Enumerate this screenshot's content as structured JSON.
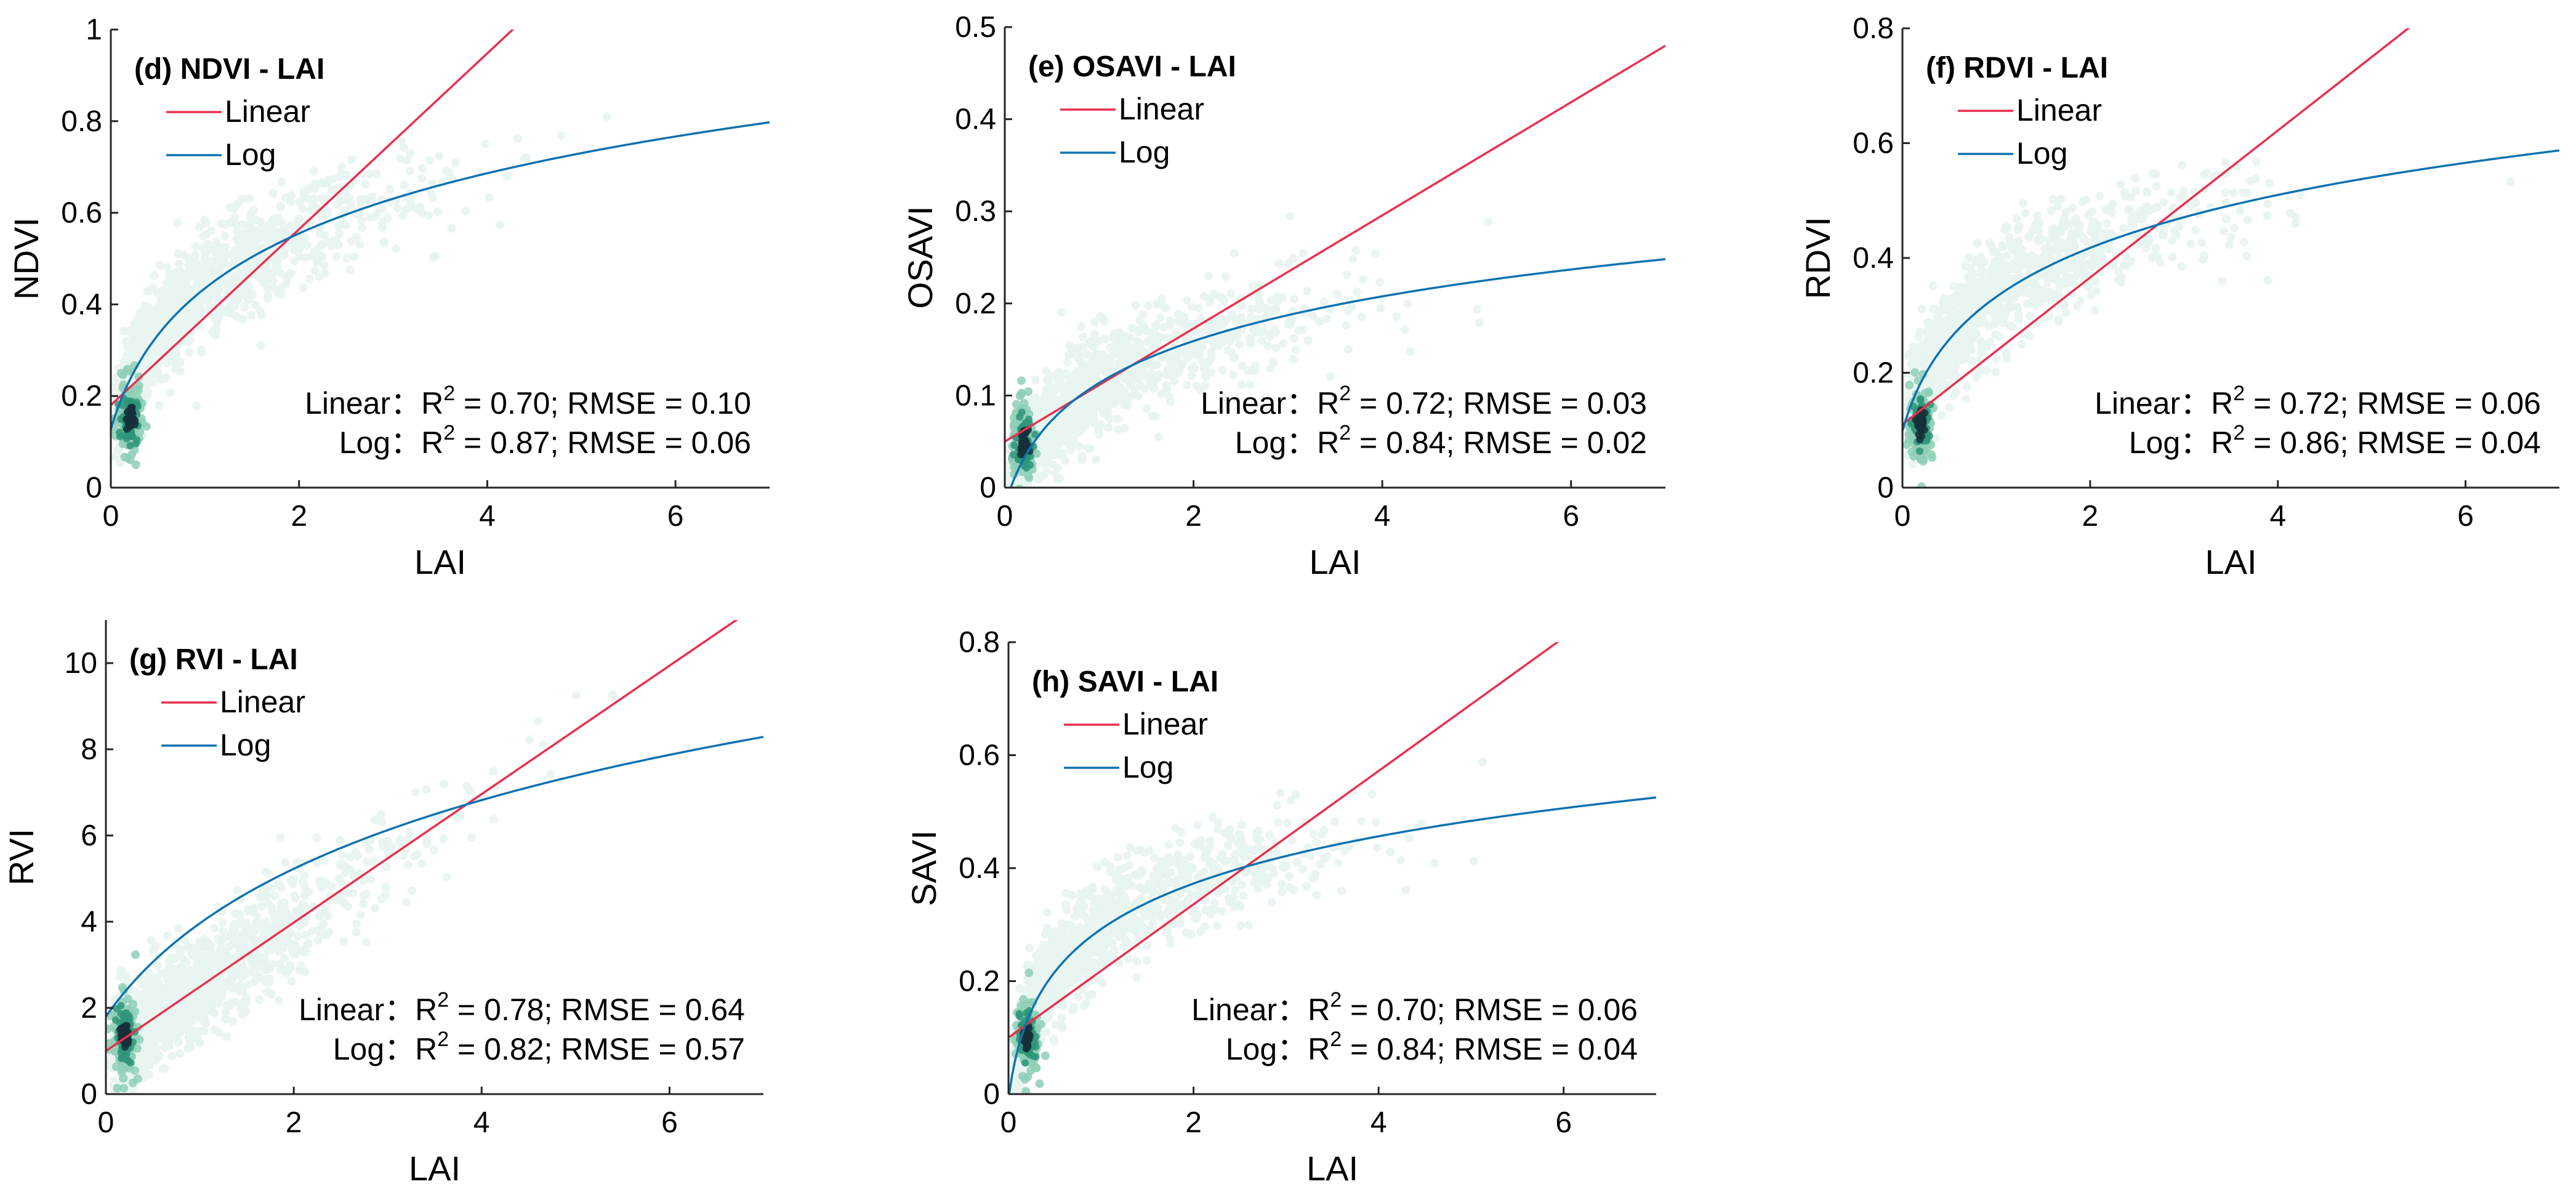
{
  "chart_data": [
    {
      "type": "scatter",
      "title": "(d) NDVI - LAI",
      "xlabel": "LAI",
      "ylabel": "NDVI",
      "xlim": [
        0,
        7
      ],
      "ylim": [
        0,
        1
      ],
      "xticks": [
        0,
        2,
        4,
        6
      ],
      "xtick_labels": [
        "0",
        "2",
        "4",
        "6"
      ],
      "yticks": [
        0,
        0.2,
        0.4,
        0.6,
        0.8,
        1
      ],
      "ytick_labels": [
        "0",
        "0.2",
        "0.4",
        "0.6",
        "0.8",
        "1"
      ],
      "legend": [
        "Linear",
        "Log"
      ],
      "fits": {
        "linear": {
          "intercept": 0.18,
          "slope": 0.192
        },
        "log": {
          "a": 0.38,
          "b": 0.21,
          "c": 0.3
        }
      },
      "stats": {
        "linear": {
          "label": "Linear：",
          "r2": "0.70",
          "rmse": "0.10"
        },
        "log": {
          "label": "Log：",
          "r2": "0.87",
          "rmse": "0.06"
        }
      },
      "density": {
        "center": [
          0.2,
          0.15
        ],
        "spread": [
          0.7,
          0.16
        ],
        "trend": "log"
      }
    },
    {
      "type": "scatter",
      "title": "(e) OSAVI - LAI",
      "xlabel": "LAI",
      "ylabel": "OSAVI",
      "xlim": [
        0,
        7
      ],
      "ylim": [
        0,
        0.5
      ],
      "xticks": [
        0,
        2,
        4,
        6
      ],
      "xtick_labels": [
        "0",
        "2",
        "4",
        "6"
      ],
      "yticks": [
        0,
        0.1,
        0.2,
        0.3,
        0.4,
        0.5
      ],
      "ytick_labels": [
        "0",
        "0.1",
        "0.2",
        "0.3",
        "0.4",
        "0.5"
      ],
      "legend": [
        "Linear",
        "Log"
      ],
      "fits": {
        "linear": {
          "intercept": 0.05,
          "slope": 0.0614
        },
        "log": {
          "a": 0.1,
          "b": 0.075,
          "c": 0.2
        }
      },
      "stats": {
        "linear": {
          "label": "Linear：",
          "r2": "0.72",
          "rmse": "0.03"
        },
        "log": {
          "label": "Log：",
          "r2": "0.84",
          "rmse": "0.02"
        }
      },
      "density": {
        "center": [
          0.2,
          0.05
        ],
        "spread": [
          0.7,
          0.05
        ],
        "trend": "log"
      }
    },
    {
      "type": "scatter",
      "title": "(f) RDVI - LAI",
      "xlabel": "LAI",
      "ylabel": "RDVI",
      "xlim": [
        0,
        7
      ],
      "ylim": [
        0,
        0.8
      ],
      "xticks": [
        0,
        2,
        4,
        6
      ],
      "xtick_labels": [
        "0",
        "2",
        "4",
        "6"
      ],
      "yticks": [
        0,
        0.2,
        0.4,
        0.6,
        0.8
      ],
      "ytick_labels": [
        "0",
        "0.2",
        "0.4",
        "0.6",
        "0.8"
      ],
      "legend": [
        "Linear",
        "Log"
      ],
      "fits": {
        "linear": {
          "intercept": 0.11,
          "slope": 0.128
        },
        "log": {
          "a": 0.3,
          "b": 0.145,
          "c": 0.25
        }
      },
      "stats": {
        "linear": {
          "label": "Linear：",
          "r2": "0.72",
          "rmse": "0.06"
        },
        "log": {
          "label": "Log：",
          "r2": "0.86",
          "rmse": "0.04"
        }
      },
      "density": {
        "center": [
          0.2,
          0.11
        ],
        "spread": [
          0.7,
          0.12
        ],
        "trend": "log"
      }
    },
    {
      "type": "scatter",
      "title": "(g) RVI - LAI",
      "xlabel": "LAI",
      "ylabel": "RVI",
      "xlim": [
        0,
        7
      ],
      "ylim": [
        0,
        11
      ],
      "xticks": [
        0,
        2,
        4,
        6
      ],
      "xtick_labels": [
        "0",
        "2",
        "4",
        "6"
      ],
      "yticks": [
        0,
        2,
        4,
        6,
        8,
        10
      ],
      "ytick_labels": [
        "0",
        "2",
        "4",
        "6",
        "8",
        "10"
      ],
      "legend": [
        "Linear",
        "Log"
      ],
      "fits": {
        "linear": {
          "intercept": 1.0,
          "slope": 1.49
        },
        "log": {
          "a": 1.8,
          "b": 3.12,
          "c": 1.0
        }
      },
      "stats": {
        "linear": {
          "label": "Linear：",
          "r2": "0.78",
          "rmse": "0.64"
        },
        "log": {
          "label": "Log：",
          "r2": "0.82",
          "rmse": "0.57"
        }
      },
      "density": {
        "center": [
          0.2,
          1.35
        ],
        "spread": [
          0.9,
          1.5
        ],
        "trend": "linear"
      }
    },
    {
      "type": "scatter",
      "title": "(h) SAVI - LAI",
      "xlabel": "LAI",
      "ylabel": "SAVI",
      "xlim": [
        0,
        7
      ],
      "ylim": [
        0,
        0.8
      ],
      "xticks": [
        0,
        2,
        4,
        6
      ],
      "xtick_labels": [
        "0",
        "2",
        "4",
        "6"
      ],
      "yticks": [
        0,
        0.2,
        0.4,
        0.6,
        0.8
      ],
      "ytick_labels": [
        "0",
        "0.2",
        "0.4",
        "0.6",
        "0.8"
      ],
      "legend": [
        "Linear",
        "Log"
      ],
      "fits": {
        "linear": {
          "intercept": 0.1,
          "slope": 0.118
        },
        "log": {
          "a": 0.28,
          "b": 0.125,
          "c": 0.1
        }
      },
      "stats": {
        "linear": {
          "label": "Linear：",
          "r2": "0.70",
          "rmse": "0.06"
        },
        "log": {
          "label": "Log：",
          "r2": "0.84",
          "rmse": "0.04"
        }
      },
      "density": {
        "center": [
          0.2,
          0.1
        ],
        "spread": [
          0.7,
          0.12
        ],
        "trend": "log"
      }
    }
  ],
  "colors": {
    "linear": "#e8304f",
    "log": "#0f72b0",
    "density_low": "#e8f4f0",
    "density_mid": "#8fcfb6",
    "density_high": "#2e9579",
    "density_peak": "#16303a"
  }
}
